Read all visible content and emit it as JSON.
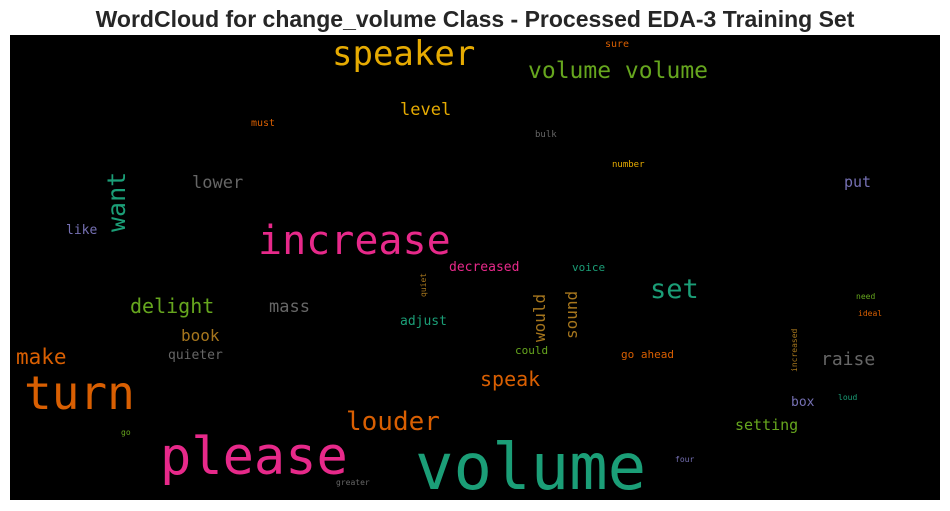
{
  "title": "WordCloud for change_volume Class - Processed EDA-3 Training Set",
  "words": [
    {
      "text": "volume",
      "color": "#1b9e77"
    },
    {
      "text": "please",
      "color": "#e7298a"
    },
    {
      "text": "increase",
      "color": "#e7298a"
    },
    {
      "text": "turn",
      "color": "#d95f02"
    },
    {
      "text": "speaker",
      "color": "#e6ab02"
    },
    {
      "text": "volume volume",
      "color": "#66a61e"
    },
    {
      "text": "louder",
      "color": "#d95f02"
    },
    {
      "text": "want",
      "color": "#1b9e77"
    },
    {
      "text": "set",
      "color": "#1b9e77"
    },
    {
      "text": "make",
      "color": "#d95f02"
    },
    {
      "text": "delight",
      "color": "#66a61e"
    },
    {
      "text": "speak",
      "color": "#d95f02"
    },
    {
      "text": "raise",
      "color": "#666666"
    },
    {
      "text": "level",
      "color": "#e6ab02"
    },
    {
      "text": "lower",
      "color": "#666666"
    },
    {
      "text": "mass",
      "color": "#666666"
    },
    {
      "text": "book",
      "color": "#a6761d"
    },
    {
      "text": "sound",
      "color": "#a6761d"
    },
    {
      "text": "would",
      "color": "#a6761d"
    },
    {
      "text": "setting",
      "color": "#66a61e"
    },
    {
      "text": "put",
      "color": "#7570b3"
    },
    {
      "text": "adjust",
      "color": "#1b9e77"
    },
    {
      "text": "decreased",
      "color": "#e7298a"
    },
    {
      "text": "quieter",
      "color": "#666666"
    },
    {
      "text": "like",
      "color": "#7570b3"
    },
    {
      "text": "box",
      "color": "#7570b3"
    },
    {
      "text": "go ahead",
      "color": "#d95f02"
    },
    {
      "text": "could",
      "color": "#66a61e"
    },
    {
      "text": "voice",
      "color": "#1b9e77"
    },
    {
      "text": "must",
      "color": "#d95f02"
    },
    {
      "text": "sure",
      "color": "#d95f02"
    },
    {
      "text": "bulk",
      "color": "#666666"
    },
    {
      "text": "number",
      "color": "#e6ab02"
    },
    {
      "text": "quiet",
      "color": "#a6761d"
    },
    {
      "text": "increased",
      "color": "#a6761d"
    },
    {
      "text": "need",
      "color": "#66a61e"
    },
    {
      "text": "ideal",
      "color": "#d95f02"
    },
    {
      "text": "loud",
      "color": "#1b9e77"
    },
    {
      "text": "four",
      "color": "#7570b3"
    },
    {
      "text": "greater",
      "color": "#666666"
    },
    {
      "text": "go",
      "color": "#66a61e"
    }
  ]
}
